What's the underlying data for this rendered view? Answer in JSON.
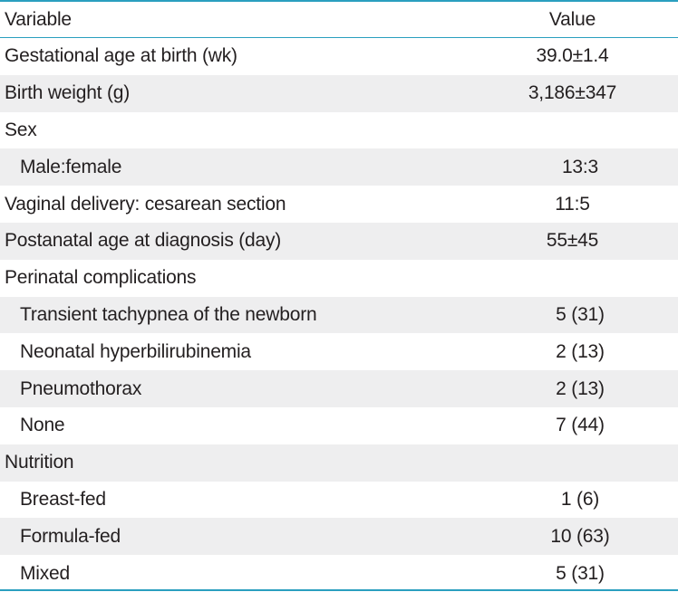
{
  "table": {
    "header": {
      "variable": "Variable",
      "value": "Value"
    },
    "rows": [
      {
        "label": "Gestational age at birth (wk)",
        "value": "39.0±1.4",
        "indent": false
      },
      {
        "label": "Birth weight (g)",
        "value": "3,186±347",
        "indent": false
      },
      {
        "label": "Sex",
        "value": "",
        "indent": false
      },
      {
        "label": "Male:female",
        "value": "13:3",
        "indent": true
      },
      {
        "label": "Vaginal delivery: cesarean section",
        "value": "11:5",
        "indent": false
      },
      {
        "label": "Postanatal age at diagnosis (day)",
        "value": "55±45",
        "indent": false
      },
      {
        "label": "Perinatal complications",
        "value": "",
        "indent": false
      },
      {
        "label": "Transient tachypnea of the newborn",
        "value": "5 (31)",
        "indent": true
      },
      {
        "label": "Neonatal hyperbilirubinemia",
        "value": "2 (13)",
        "indent": true
      },
      {
        "label": "Pneumothorax",
        "value": "2 (13)",
        "indent": true
      },
      {
        "label": "None",
        "value": "7 (44)",
        "indent": true
      },
      {
        "label": "Nutrition",
        "value": "",
        "indent": false
      },
      {
        "label": "Breast-fed",
        "value": "1 (6)",
        "indent": true
      },
      {
        "label": "Formula-fed",
        "value": "10 (63)",
        "indent": true
      },
      {
        "label": "Mixed",
        "value": "5 (31)",
        "indent": true
      }
    ],
    "colors": {
      "rule": "#2a9fbf",
      "shade": "#eeeeef",
      "text": "#231f20"
    }
  }
}
